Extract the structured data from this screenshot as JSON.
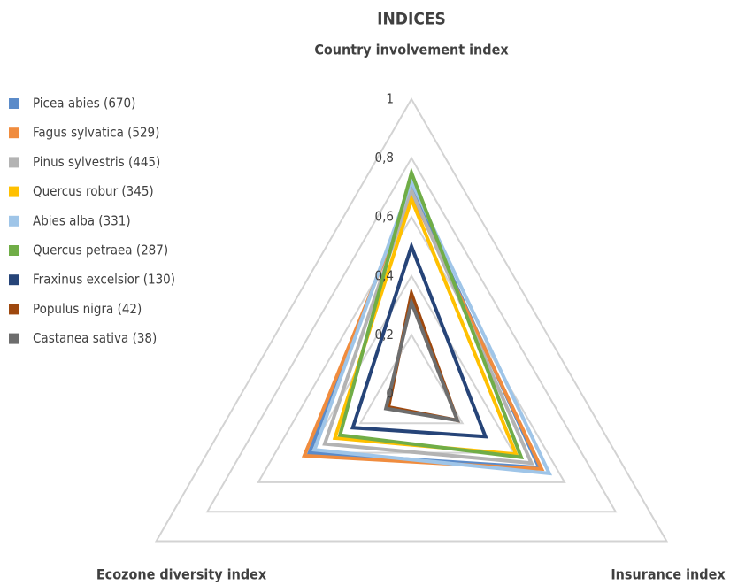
{
  "chart_data": {
    "type": "radar",
    "title": "INDICES",
    "categories": [
      "Country involvement index",
      "Insurance index",
      "Ecozone diversity index"
    ],
    "ylim": [
      0,
      1
    ],
    "yticks": [
      0,
      {
        "value": 0.2,
        "label": "0,2"
      },
      {
        "value": 0.4,
        "label": "0,4"
      },
      {
        "value": 0.6,
        "label": "0,6"
      },
      {
        "value": 0.8,
        "label": "0,8"
      },
      1
    ],
    "grid": true,
    "legend": "left",
    "series": [
      {
        "name": "Picea abies (670)",
        "color": "#5b8bc9",
        "values": [
          0.7,
          0.5,
          0.4
        ]
      },
      {
        "name": "Fagus sylvatica (529)",
        "color": "#f08c3e",
        "values": [
          0.68,
          0.51,
          0.42
        ]
      },
      {
        "name": "Pinus sylvestris (445)",
        "color": "#b3b3b3",
        "values": [
          0.69,
          0.47,
          0.34
        ]
      },
      {
        "name": "Quercus robur (345)",
        "color": "#ffc000",
        "values": [
          0.66,
          0.41,
          0.3
        ]
      },
      {
        "name": " Abies alba (331)",
        "color": "#9fc5e8",
        "values": [
          0.72,
          0.54,
          0.38
        ]
      },
      {
        "name": "Quercus petraea (287)",
        "color": "#70ad47",
        "values": [
          0.75,
          0.43,
          0.28
        ]
      },
      {
        "name": "Fraxinus excelsior (130)",
        "color": "#264478",
        "values": [
          0.5,
          0.29,
          0.23
        ]
      },
      {
        "name": "Populus nigra (42)",
        "color": "#9e480e",
        "values": [
          0.34,
          0.18,
          0.09
        ]
      },
      {
        "name": "Castanea sativa (38)",
        "color": "#6d6d6d",
        "values": [
          0.31,
          0.18,
          0.1
        ]
      }
    ]
  }
}
